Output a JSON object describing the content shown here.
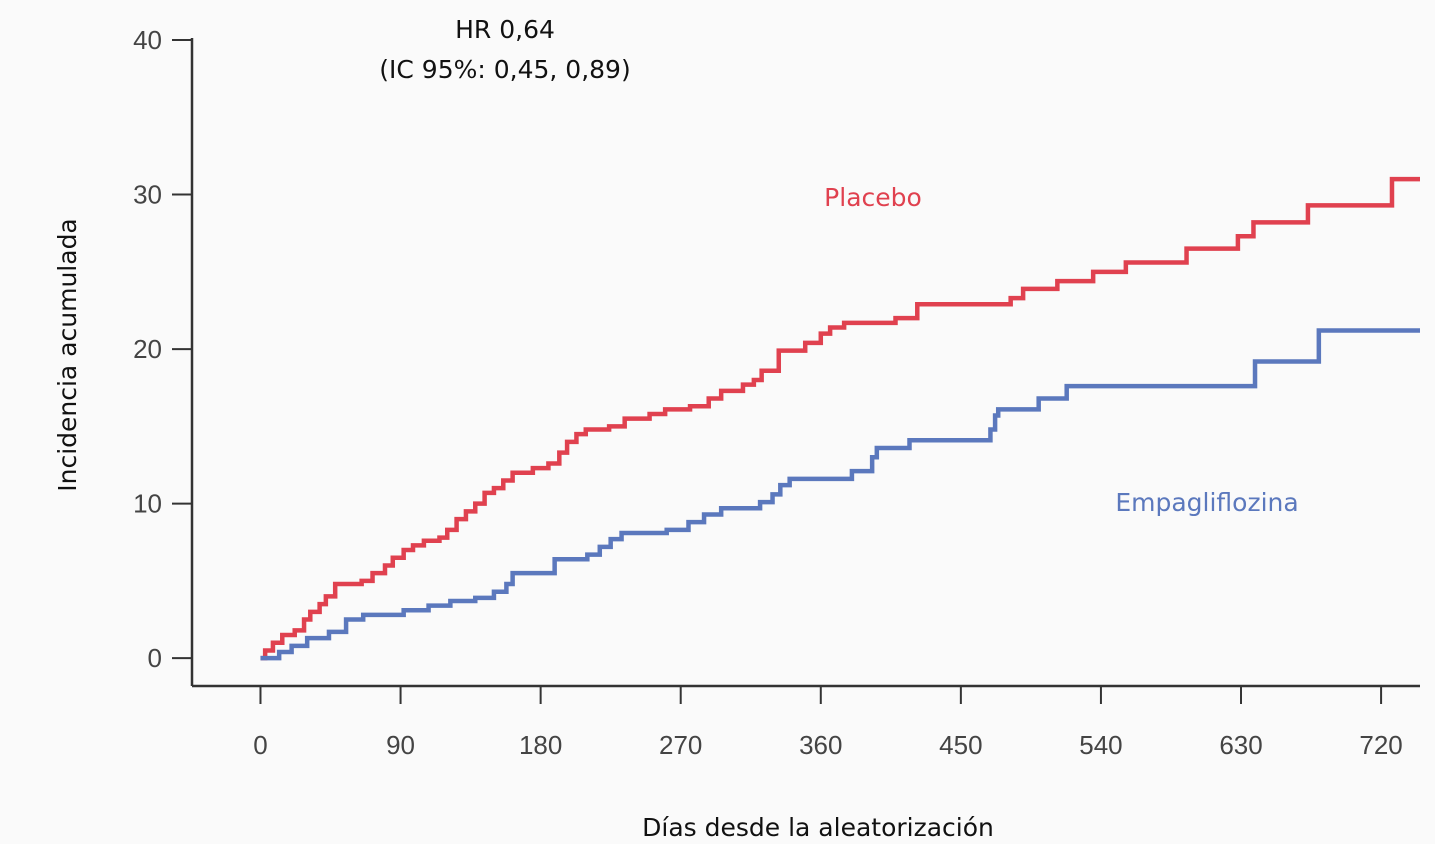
{
  "chart_data": {
    "type": "line",
    "step": true,
    "annotations": [
      "HR 0,64",
      "(IC 95%: 0,45, 0,89)"
    ],
    "xlabel": "Días desde la aleatorización",
    "ylabel": "Incidencia acumulada",
    "xlim": [
      -44,
      745
    ],
    "ylim": [
      -1.8,
      40
    ],
    "xticks": [
      0,
      90,
      180,
      270,
      360,
      450,
      540,
      630,
      720
    ],
    "yticks": [
      0,
      10,
      20,
      30,
      40
    ],
    "series": [
      {
        "name": "Placebo",
        "color": "#e0414f",
        "x": [
          0,
          3,
          8,
          14,
          22,
          28,
          32,
          38,
          42,
          48,
          65,
          72,
          80,
          85,
          92,
          98,
          105,
          115,
          120,
          126,
          132,
          138,
          144,
          150,
          156,
          162,
          175,
          185,
          192,
          197,
          203,
          209,
          224,
          234,
          250,
          260,
          276,
          288,
          296,
          310,
          317,
          322,
          333,
          350,
          360,
          366,
          375,
          408,
          422,
          482,
          490,
          512,
          535,
          556,
          595,
          628,
          638,
          673,
          727
        ],
        "values": [
          0,
          0.5,
          1,
          1.5,
          1.8,
          2.5,
          3,
          3.5,
          4,
          4.8,
          5,
          5.5,
          6,
          6.5,
          7,
          7.3,
          7.6,
          7.8,
          8.3,
          9,
          9.5,
          10,
          10.7,
          11,
          11.5,
          12,
          12.3,
          12.6,
          13.3,
          14,
          14.5,
          14.8,
          15,
          15.5,
          15.8,
          16.1,
          16.3,
          16.8,
          17.3,
          17.7,
          18,
          18.6,
          19.9,
          20.4,
          21,
          21.4,
          21.7,
          22,
          22.9,
          23.3,
          23.9,
          24.4,
          25,
          25.6,
          26.5,
          27.3,
          28.2,
          29.3,
          31
        ]
      },
      {
        "name": "Empagliflozina",
        "color": "#5b78bd",
        "x": [
          0,
          12,
          20,
          30,
          44,
          55,
          66,
          92,
          108,
          122,
          138,
          150,
          158,
          162,
          189,
          210,
          218,
          225,
          232,
          261,
          275,
          285,
          296,
          321,
          329,
          334,
          340,
          380,
          393,
          396,
          417,
          469,
          472,
          474,
          500,
          518,
          639,
          680
        ],
        "values": [
          0,
          0.4,
          0.8,
          1.3,
          1.7,
          2.5,
          2.8,
          3.1,
          3.4,
          3.7,
          3.9,
          4.3,
          4.8,
          5.5,
          6.4,
          6.7,
          7.2,
          7.7,
          8.1,
          8.3,
          8.8,
          9.3,
          9.7,
          10.1,
          10.6,
          11.2,
          11.6,
          12.1,
          13,
          13.6,
          14.1,
          14.8,
          15.7,
          16.1,
          16.8,
          17.6,
          19.2,
          21.2
        ]
      }
    ]
  }
}
